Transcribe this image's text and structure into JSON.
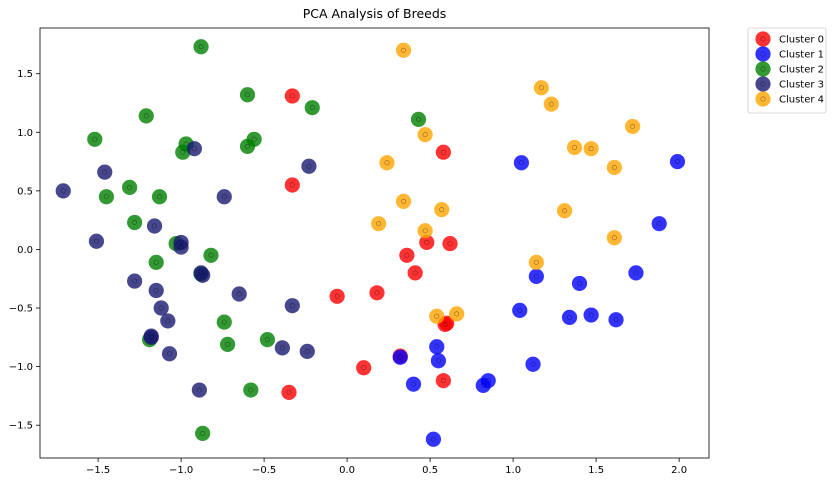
{
  "chart_data": {
    "type": "scatter",
    "title": "PCA Analysis of Breeds",
    "xlabel": "",
    "ylabel": "",
    "xlim": [
      -1.85,
      2.18
    ],
    "ylim": [
      -1.78,
      1.89
    ],
    "xticks": [
      -1.5,
      -1.0,
      -0.5,
      0.0,
      0.5,
      1.0,
      1.5,
      2.0
    ],
    "xtick_labels": [
      "−1.5",
      "−1.0",
      "−0.5",
      "0.0",
      "0.5",
      "1.0",
      "1.5",
      "2.0"
    ],
    "yticks": [
      -1.5,
      -1.0,
      -0.5,
      0.0,
      0.5,
      1.0,
      1.5
    ],
    "ytick_labels": [
      "−1.5",
      "−1.0",
      "−0.5",
      "0.0",
      "0.5",
      "1.0",
      "1.5"
    ],
    "grid": false,
    "legend_position": "outside-top-right",
    "series": [
      {
        "name": "Cluster 0",
        "color": "#ff0000",
        "points": [
          [
            -0.33,
            1.31
          ],
          [
            -0.33,
            0.55
          ],
          [
            0.58,
            0.83
          ],
          [
            0.36,
            -0.05
          ],
          [
            0.48,
            0.06
          ],
          [
            0.62,
            0.05
          ],
          [
            0.41,
            -0.2
          ],
          [
            -0.06,
            -0.4
          ],
          [
            0.18,
            -0.37
          ],
          [
            0.6,
            -0.63
          ],
          [
            0.59,
            -0.64
          ],
          [
            0.32,
            -0.91
          ],
          [
            0.1,
            -1.01
          ],
          [
            0.58,
            -1.12
          ],
          [
            -0.35,
            -1.22
          ]
        ]
      },
      {
        "name": "Cluster 1",
        "color": "#0000ff",
        "points": [
          [
            1.05,
            0.74
          ],
          [
            1.99,
            0.75
          ],
          [
            1.88,
            0.22
          ],
          [
            1.14,
            -0.23
          ],
          [
            1.74,
            -0.2
          ],
          [
            1.4,
            -0.29
          ],
          [
            1.04,
            -0.52
          ],
          [
            1.34,
            -0.58
          ],
          [
            1.47,
            -0.56
          ],
          [
            1.62,
            -0.6
          ],
          [
            0.54,
            -0.83
          ],
          [
            0.55,
            -0.95
          ],
          [
            0.32,
            -0.92
          ],
          [
            1.12,
            -0.98
          ],
          [
            0.85,
            -1.12
          ],
          [
            0.82,
            -1.16
          ],
          [
            0.4,
            -1.15
          ],
          [
            0.52,
            -1.62
          ]
        ]
      },
      {
        "name": "Cluster 2",
        "color": "#008000",
        "points": [
          [
            -0.88,
            1.73
          ],
          [
            -0.6,
            1.32
          ],
          [
            -0.21,
            1.21
          ],
          [
            -1.21,
            1.14
          ],
          [
            -1.52,
            0.94
          ],
          [
            -0.97,
            0.9
          ],
          [
            -0.99,
            0.83
          ],
          [
            -0.56,
            0.94
          ],
          [
            -0.6,
            0.88
          ],
          [
            0.43,
            1.11
          ],
          [
            -1.31,
            0.53
          ],
          [
            -1.45,
            0.45
          ],
          [
            -1.13,
            0.45
          ],
          [
            -1.28,
            0.23
          ],
          [
            -1.03,
            0.05
          ],
          [
            -0.82,
            -0.05
          ],
          [
            -1.15,
            -0.11
          ],
          [
            -0.88,
            -0.21
          ],
          [
            -0.74,
            -0.62
          ],
          [
            -0.72,
            -0.81
          ],
          [
            -0.48,
            -0.77
          ],
          [
            -1.19,
            -0.77
          ],
          [
            -0.58,
            -1.2
          ],
          [
            -0.87,
            -1.57
          ]
        ]
      },
      {
        "name": "Cluster 3",
        "color": "#191970",
        "points": [
          [
            -1.71,
            0.5
          ],
          [
            -1.46,
            0.66
          ],
          [
            -0.92,
            0.86
          ],
          [
            -0.23,
            0.71
          ],
          [
            -0.74,
            0.45
          ],
          [
            -1.16,
            0.2
          ],
          [
            -1.51,
            0.07
          ],
          [
            -1.0,
            0.06
          ],
          [
            -1.0,
            0.02
          ],
          [
            -0.88,
            -0.2
          ],
          [
            -0.87,
            -0.22
          ],
          [
            -1.28,
            -0.27
          ],
          [
            -1.15,
            -0.35
          ],
          [
            -0.65,
            -0.38
          ],
          [
            -0.33,
            -0.48
          ],
          [
            -1.12,
            -0.5
          ],
          [
            -1.08,
            -0.61
          ],
          [
            -1.18,
            -0.74
          ],
          [
            -1.18,
            -0.75
          ],
          [
            -0.39,
            -0.84
          ],
          [
            -0.24,
            -0.87
          ],
          [
            -1.07,
            -0.89
          ],
          [
            -0.89,
            -1.2
          ]
        ]
      },
      {
        "name": "Cluster 4",
        "color": "#ffa500",
        "points": [
          [
            0.34,
            1.7
          ],
          [
            1.17,
            1.38
          ],
          [
            1.23,
            1.24
          ],
          [
            1.72,
            1.05
          ],
          [
            0.47,
            0.98
          ],
          [
            1.37,
            0.87
          ],
          [
            1.47,
            0.86
          ],
          [
            1.61,
            0.7
          ],
          [
            0.24,
            0.74
          ],
          [
            0.34,
            0.41
          ],
          [
            0.57,
            0.34
          ],
          [
            1.31,
            0.33
          ],
          [
            0.19,
            0.22
          ],
          [
            0.47,
            0.16
          ],
          [
            1.61,
            0.1
          ],
          [
            1.14,
            -0.11
          ],
          [
            0.54,
            -0.57
          ],
          [
            0.66,
            -0.55
          ]
        ]
      }
    ]
  }
}
